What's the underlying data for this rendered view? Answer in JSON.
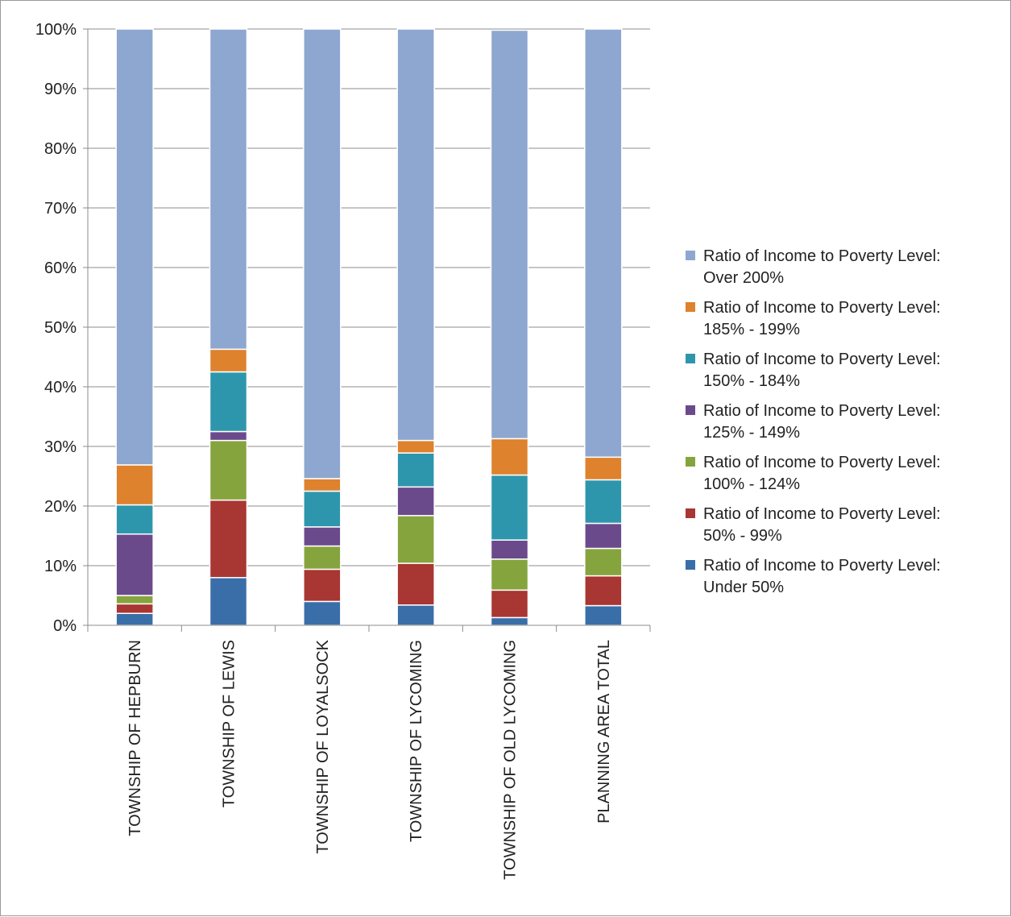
{
  "chart_data": {
    "type": "bar",
    "stacked": true,
    "percent_stacked": true,
    "title": "",
    "xlabel": "",
    "ylabel": "",
    "ylim": [
      0,
      100
    ],
    "y_ticks": [
      "0%",
      "10%",
      "20%",
      "30%",
      "40%",
      "50%",
      "60%",
      "70%",
      "80%",
      "90%",
      "100%"
    ],
    "grid": true,
    "legend_position": "right",
    "categories": [
      "TOWNSHIP OF HEPBURN",
      "TOWNSHIP OF LEWIS",
      "TOWNSHIP OF LOYALSOCK",
      "TOWNSHIP OF LYCOMING",
      "TOWNSHIP OF OLD LYCOMING",
      "PLANNING AREA TOTAL"
    ],
    "series": [
      {
        "name": "Ratio of Income to Poverty Level: Under 50%",
        "legend_line1": "Ratio of Income to Poverty Level:",
        "legend_line2": "Under 50%",
        "color": "#3a6ea8",
        "values": [
          2.0,
          8.0,
          4.0,
          3.4,
          1.3,
          3.3
        ]
      },
      {
        "name": "Ratio of Income to Poverty Level: 50% - 99%",
        "legend_line1": "Ratio of Income to Poverty Level:",
        "legend_line2": "50% - 99%",
        "color": "#a83632",
        "values": [
          1.6,
          13.0,
          5.4,
          7.0,
          4.6,
          5.0
        ]
      },
      {
        "name": "Ratio of Income to Poverty Level: 100% - 124%",
        "legend_line1": "Ratio of Income to Poverty Level:",
        "legend_line2": "100% - 124%",
        "color": "#86a43e",
        "values": [
          1.4,
          10.0,
          3.9,
          8.0,
          5.2,
          4.6
        ]
      },
      {
        "name": "Ratio of Income to Poverty Level: 125% - 149%",
        "legend_line1": "Ratio of Income to Poverty Level:",
        "legend_line2": "125% - 149%",
        "color": "#6b4a8c",
        "values": [
          10.3,
          1.5,
          3.2,
          4.8,
          3.2,
          4.2
        ]
      },
      {
        "name": "Ratio of Income to Poverty Level: 150% - 184%",
        "legend_line1": "Ratio of Income to Poverty Level:",
        "legend_line2": "150% - 184%",
        "color": "#2e96ac",
        "values": [
          4.9,
          10.0,
          6.0,
          5.7,
          10.9,
          7.3
        ]
      },
      {
        "name": "Ratio of Income to Poverty Level: 185% - 199%",
        "legend_line1": "Ratio of Income to Poverty Level:",
        "legend_line2": "185% - 199%",
        "color": "#de822e",
        "values": [
          6.7,
          3.8,
          2.1,
          2.1,
          6.1,
          3.8
        ]
      },
      {
        "name": "Ratio of Income to Poverty Level: Over 200%",
        "legend_line1": "Ratio of Income to Poverty Level:",
        "legend_line2": "Over 200%",
        "color": "#8ea7d0",
        "values": [
          73.1,
          53.7,
          75.4,
          69.0,
          68.5,
          71.8
        ]
      }
    ]
  }
}
